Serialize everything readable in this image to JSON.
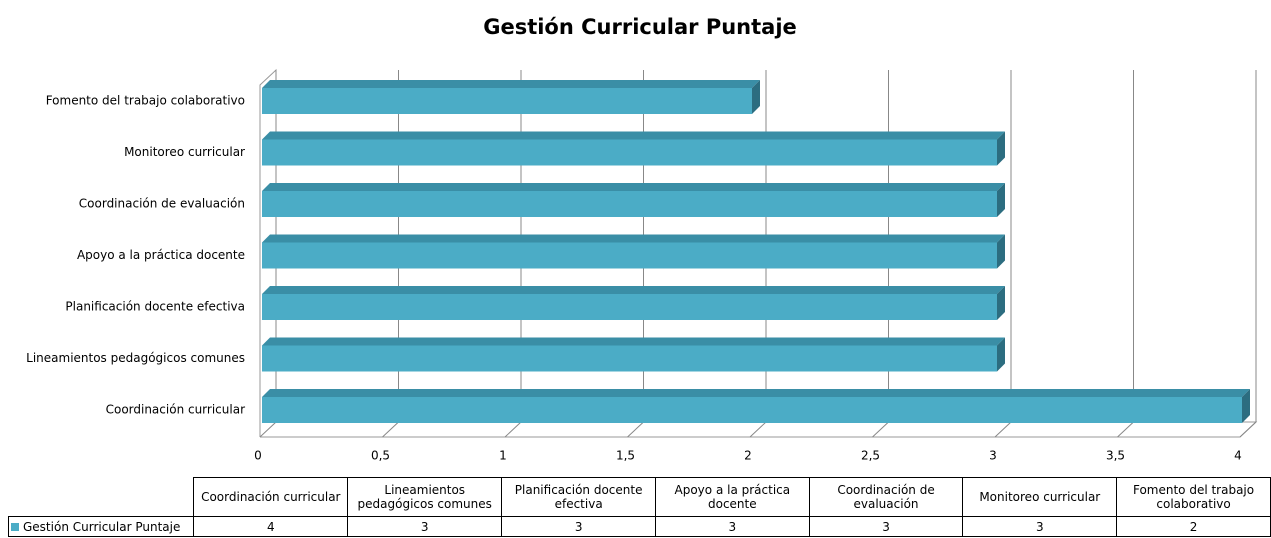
{
  "chart_data": {
    "type": "bar",
    "orientation": "horizontal",
    "title": "Gestión Curricular Puntaje",
    "categories": [
      "Coordinación curricular",
      "Lineamientos pedagógicos comunes",
      "Planificación docente efectiva",
      "Apoyo a la práctica docente",
      "Coordinación de evaluación",
      "Monitoreo curricular",
      "Fomento del trabajo colaborativo"
    ],
    "series": [
      {
        "name": "Gestión Curricular Puntaje",
        "color": "#4bacc6",
        "values": [
          4,
          3,
          3,
          3,
          3,
          3,
          2
        ]
      }
    ],
    "xlim": [
      0,
      4
    ],
    "xticks": [
      0,
      {
        "value": 0.5,
        "label": "0,5"
      },
      1,
      {
        "value": 1.5,
        "label": "1,5"
      },
      2,
      {
        "value": 2.5,
        "label": "2,5"
      },
      3,
      {
        "value": 3.5,
        "label": "3,5"
      },
      4
    ],
    "grid": true,
    "data_table": true
  }
}
